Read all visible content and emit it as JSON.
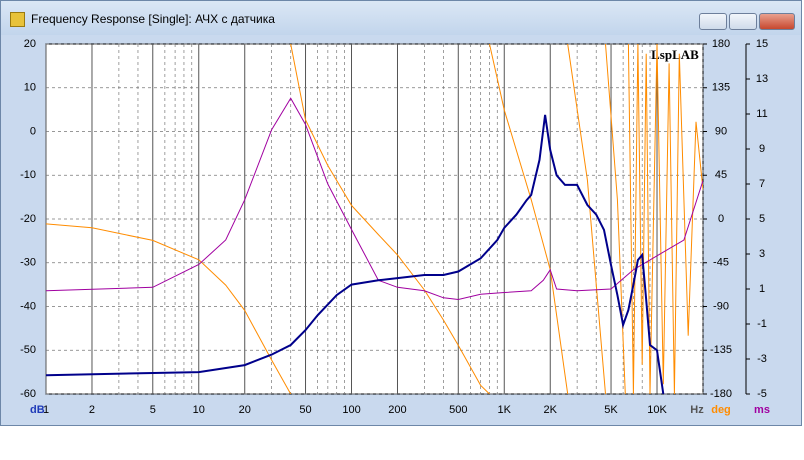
{
  "window_title": "Frequency Response [Single]: АЧХ с датчика",
  "watermark": "LspLAB",
  "chart_data": {
    "type": "line",
    "xlabel": "Hz",
    "ylabel": "dB",
    "y2label": "deg",
    "y3label": "ms",
    "log_x": true,
    "grid": true,
    "xlim": [
      1,
      20000
    ],
    "xticks": [
      1,
      2,
      5,
      10,
      20,
      50,
      100,
      200,
      500,
      {
        "value": 1000,
        "label": "1K"
      },
      {
        "value": 2000,
        "label": "2K"
      },
      {
        "value": 5000,
        "label": "5K"
      },
      {
        "value": 10000,
        "label": "10K"
      }
    ],
    "x_minor_ticks": [
      3,
      4,
      6,
      7,
      8,
      9,
      30,
      40,
      60,
      70,
      80,
      90,
      300,
      400,
      600,
      700,
      800,
      900,
      3000,
      4000,
      6000,
      7000,
      8000,
      9000,
      20000
    ],
    "ylim": [
      -60,
      20
    ],
    "yticks": [
      20,
      10,
      0,
      -10,
      -20,
      -30,
      -40,
      -50,
      -60
    ],
    "y2lim": [
      -180,
      180
    ],
    "y2ticks": [
      180,
      135,
      90,
      45,
      0,
      -45,
      -90,
      -135,
      -180
    ],
    "y3lim": [
      -5,
      15
    ],
    "y3ticks": [
      15,
      13,
      11,
      9,
      7,
      5,
      3,
      1,
      -1,
      -3,
      -5
    ],
    "series": [
      {
        "color": "#ff8c00",
        "axis": "y2",
        "x": [
          1,
          2,
          5,
          10,
          15,
          20,
          30,
          40,
          40,
          40,
          50,
          70,
          100,
          150,
          200,
          300,
          400,
          500,
          700,
          800,
          800,
          800,
          1000,
          1500,
          2000,
          2600,
          2600,
          2600,
          3500,
          4600,
          4600,
          4600,
          5500,
          6200,
          6200,
          6500,
          7000,
          7500,
          8000,
          8500,
          9000,
          10000,
          11000,
          12000,
          13000,
          14000,
          16000,
          18000,
          20000
        ],
        "values": [
          -5,
          -9,
          -22,
          -42,
          -68,
          -94,
          -145,
          -180,
          null,
          180,
          102,
          55,
          14,
          -16,
          -37,
          -73,
          -104,
          -130,
          -171,
          -180,
          null,
          180,
          112,
          20,
          -52,
          -180,
          null,
          180,
          40,
          -180,
          null,
          180,
          20,
          -180,
          null,
          180,
          -180,
          180,
          -150,
          170,
          -180,
          180,
          -170,
          160,
          -180,
          170,
          -120,
          100,
          30
        ]
      },
      {
        "color": "#a000a0",
        "axis": "y3",
        "x": [
          1,
          5,
          10,
          15,
          20,
          30,
          40,
          50,
          70,
          100,
          150,
          200,
          300,
          400,
          500,
          700,
          1000,
          1500,
          1800,
          2000,
          2200,
          3000,
          5000,
          7000,
          10000,
          15000,
          20000
        ],
        "values": [
          0.9,
          1.1,
          2.4,
          3.8,
          6.1,
          10.1,
          11.9,
          10.4,
          7,
          4.4,
          1.5,
          1.1,
          0.9,
          0.5,
          0.4,
          0.7,
          0.8,
          0.9,
          1.5,
          2.1,
          1,
          0.9,
          1,
          2.1,
          2.9,
          3.8,
          7.2
        ]
      },
      {
        "color": "#00008b",
        "axis": "y",
        "x": [
          1,
          10,
          20,
          30,
          40,
          50,
          60,
          80,
          100,
          150,
          200,
          300,
          400,
          500,
          700,
          900,
          1000,
          1200,
          1400,
          1500,
          1700,
          1850,
          2000,
          2200,
          2500,
          3000,
          3500,
          4000,
          4500,
          5000,
          5500,
          6000,
          6500,
          7000,
          7500,
          8000,
          8500,
          9000,
          10000,
          11000
        ],
        "values": [
          -55.7,
          -55,
          -53.4,
          -51,
          -48.8,
          -45.4,
          -42,
          -37.4,
          -35,
          -34,
          -33.5,
          -32.8,
          -32.8,
          -32,
          -29,
          -24.8,
          -22,
          -19,
          -15.7,
          -14.5,
          -6.5,
          3.8,
          -4.2,
          -10,
          -12.2,
          -12.2,
          -16.8,
          -19,
          -22.5,
          -30.5,
          -37.4,
          -44.2,
          -40.8,
          -35,
          -29.4,
          -28.2,
          -38.5,
          -48.8,
          -50,
          -60
        ]
      }
    ]
  }
}
